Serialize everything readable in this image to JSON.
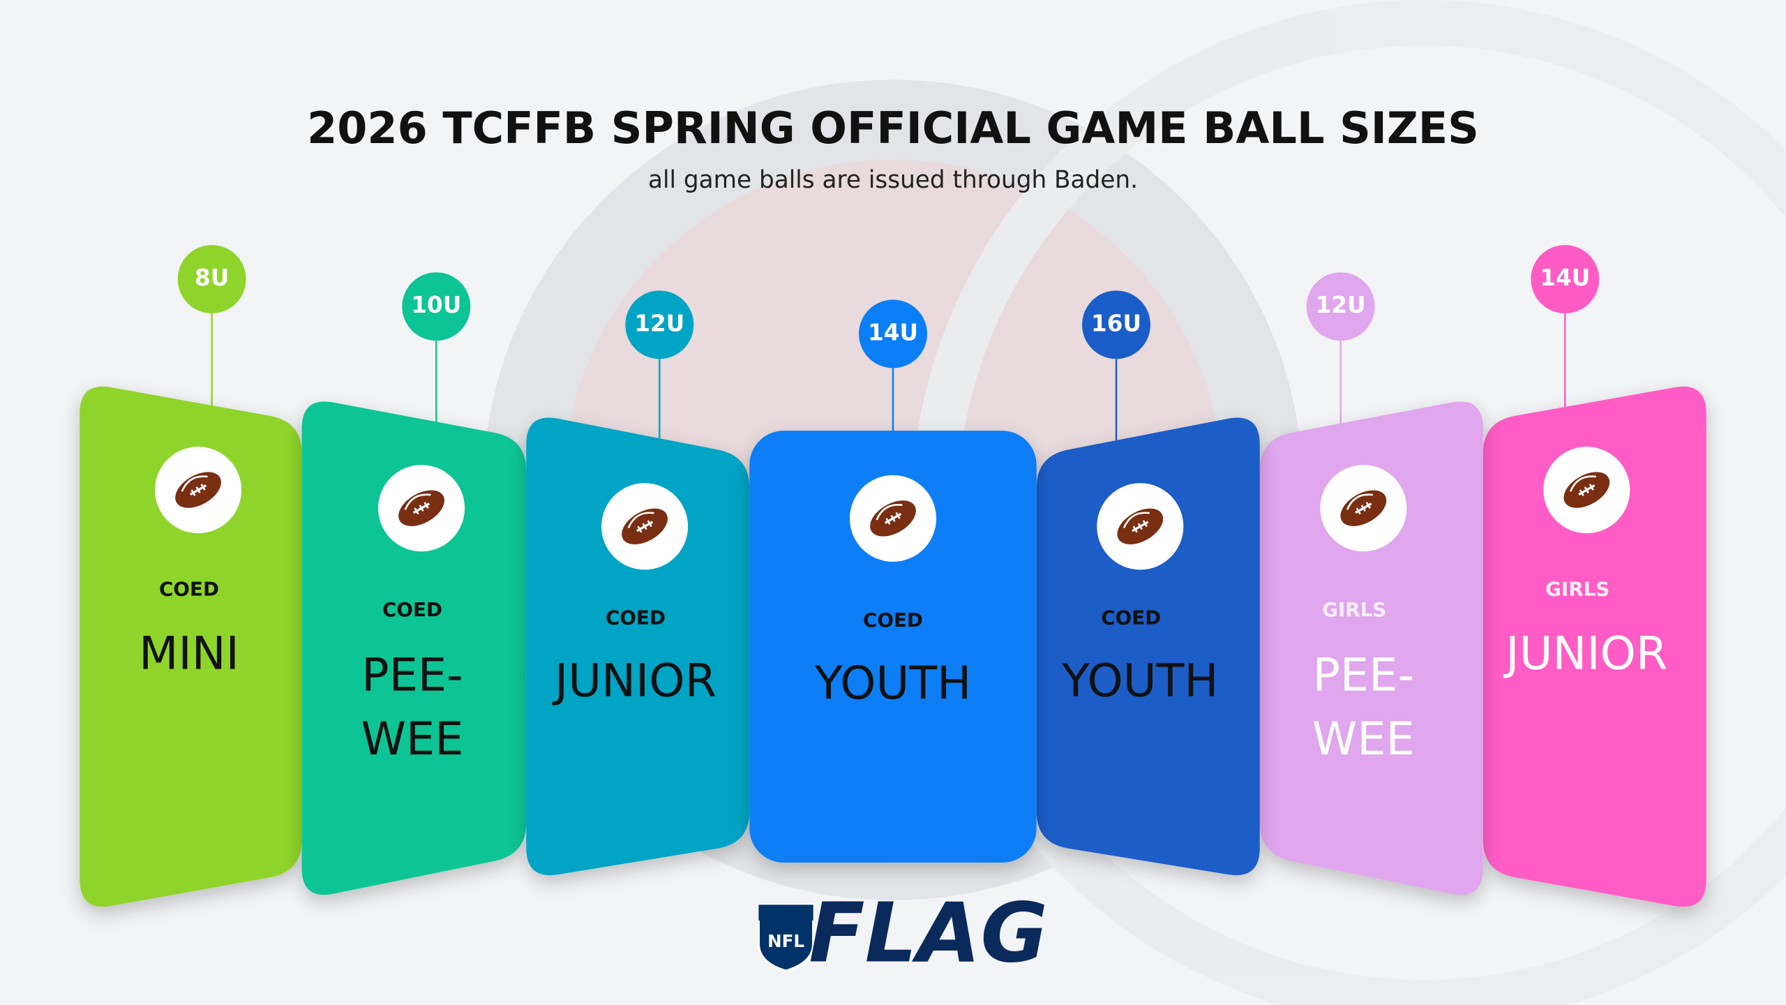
{
  "header": {
    "title": "2026 TCFFB SPRING OFFICIAL GAME BALL SIZES",
    "subtitle": "all game balls are issued through Baden."
  },
  "cards": [
    {
      "age": "8U",
      "group": "COED",
      "name": [
        "MINI"
      ]
    },
    {
      "age": "10U",
      "group": "COED",
      "name": [
        "PEE-",
        "WEE"
      ]
    },
    {
      "age": "12U",
      "group": "COED",
      "name": [
        "JUNIOR"
      ]
    },
    {
      "age": "14U",
      "group": "COED",
      "name": [
        "YOUTH"
      ]
    },
    {
      "age": "16U",
      "group": "COED",
      "name": [
        "YOUTH"
      ]
    },
    {
      "age": "12U",
      "group": "GIRLS",
      "name": [
        "PEE-",
        "WEE"
      ]
    },
    {
      "age": "14U",
      "group": "GIRLS",
      "name": [
        "JUNIOR"
      ]
    }
  ],
  "logo": {
    "badge": "NFL",
    "wordmark": "FLAG"
  }
}
